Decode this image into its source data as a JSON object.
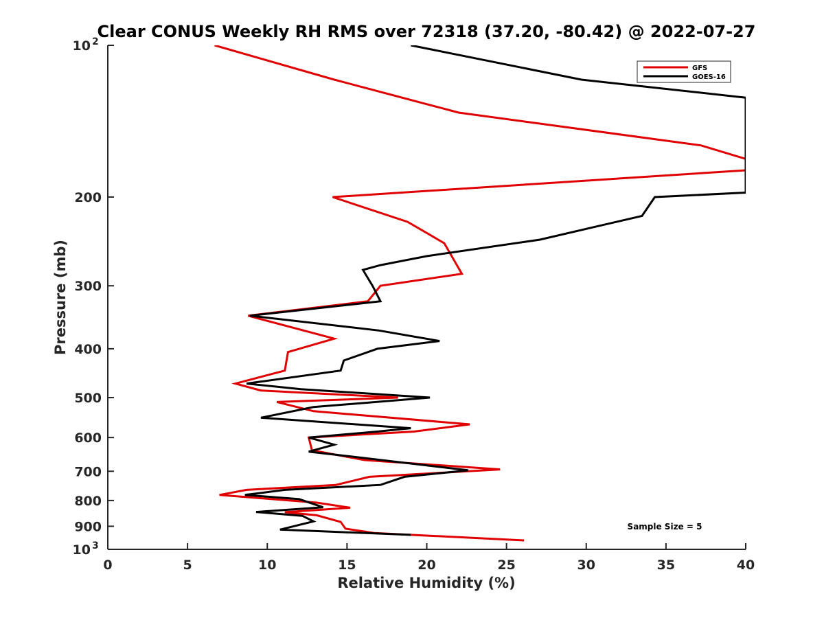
{
  "chart_data": {
    "type": "line",
    "title": "Clear CONUS Weekly RH RMS over 72318 (37.20, -80.42) @ 2022-07-27",
    "xlabel": "Relative Humidity (%)",
    "ylabel": "Pressure (mb)",
    "xlim": [
      0,
      40
    ],
    "ylim": [
      100,
      1000
    ],
    "y_scale": "log",
    "y_reversed": true,
    "grid": false,
    "legend_position": "top-right",
    "x_ticks": [
      0,
      5,
      10,
      15,
      20,
      25,
      30,
      35,
      40
    ],
    "y_ticks": [
      {
        "value": 100,
        "label": "10",
        "sup": "2"
      },
      {
        "value": 200,
        "label": "200",
        "sup": ""
      },
      {
        "value": 300,
        "label": "300",
        "sup": ""
      },
      {
        "value": 400,
        "label": "400",
        "sup": ""
      },
      {
        "value": 500,
        "label": "500",
        "sup": ""
      },
      {
        "value": 600,
        "label": "600",
        "sup": ""
      },
      {
        "value": 700,
        "label": "700",
        "sup": ""
      },
      {
        "value": 800,
        "label": "800",
        "sup": ""
      },
      {
        "value": 900,
        "label": "900",
        "sup": ""
      },
      {
        "value": 1000,
        "label": "10",
        "sup": "3"
      }
    ],
    "series": [
      {
        "name": "GFS",
        "color": "#e00000",
        "points": [
          [
            6.7,
            100
          ],
          [
            14.2,
            117
          ],
          [
            22.0,
            136
          ],
          [
            37.2,
            158
          ],
          [
            40.0,
            168
          ],
          [
            40.0,
            177
          ],
          [
            14.1,
            200
          ],
          [
            18.8,
            224
          ],
          [
            21.1,
            247
          ],
          [
            22.2,
            284
          ],
          [
            17.1,
            300
          ],
          [
            16.3,
            322
          ],
          [
            8.8,
            344
          ],
          [
            14.2,
            382
          ],
          [
            11.3,
            406
          ],
          [
            11.1,
            442
          ],
          [
            8.0,
            469
          ],
          [
            9.6,
            484
          ],
          [
            18.2,
            500
          ],
          [
            10.6,
            510
          ],
          [
            12.9,
            532
          ],
          [
            22.7,
            565
          ],
          [
            19.2,
            584
          ],
          [
            12.6,
            600
          ],
          [
            12.8,
            636
          ],
          [
            16.1,
            665
          ],
          [
            24.6,
            694
          ],
          [
            16.4,
            718
          ],
          [
            14.3,
            745
          ],
          [
            8.7,
            762
          ],
          [
            7.0,
            780
          ],
          [
            13.1,
            808
          ],
          [
            15.2,
            827
          ],
          [
            11.1,
            844
          ],
          [
            13.1,
            856
          ],
          [
            14.6,
            882
          ],
          [
            14.9,
            910
          ],
          [
            16.7,
            928
          ],
          [
            26.1,
            960
          ]
        ]
      },
      {
        "name": "GOES-16",
        "color": "#000000",
        "points": [
          [
            19.0,
            100
          ],
          [
            29.7,
            117
          ],
          [
            40.0,
            127
          ],
          [
            40.0,
            196
          ],
          [
            34.3,
            200
          ],
          [
            33.5,
            218
          ],
          [
            27.1,
            243
          ],
          [
            20.0,
            262
          ],
          [
            17.1,
            273
          ],
          [
            16.0,
            279
          ],
          [
            16.6,
            300
          ],
          [
            17.1,
            322
          ],
          [
            8.9,
            344
          ],
          [
            17.0,
            368
          ],
          [
            20.8,
            386
          ],
          [
            16.9,
            400
          ],
          [
            14.8,
            422
          ],
          [
            14.6,
            442
          ],
          [
            8.7,
            469
          ],
          [
            12.1,
            481
          ],
          [
            20.2,
            500
          ],
          [
            12.9,
            522
          ],
          [
            9.6,
            548
          ],
          [
            19.0,
            575
          ],
          [
            16.9,
            584
          ],
          [
            12.6,
            600
          ],
          [
            14.2,
            620
          ],
          [
            12.6,
            640
          ],
          [
            15.0,
            653
          ],
          [
            22.6,
            697
          ],
          [
            18.6,
            718
          ],
          [
            17.1,
            745
          ],
          [
            11.1,
            762
          ],
          [
            8.6,
            780
          ],
          [
            12.0,
            795
          ],
          [
            13.5,
            825
          ],
          [
            9.3,
            843
          ],
          [
            12.2,
            858
          ],
          [
            12.9,
            880
          ],
          [
            10.8,
            914
          ],
          [
            19.0,
            936
          ]
        ]
      }
    ],
    "annotations": [
      "Sample Size = 5"
    ]
  }
}
